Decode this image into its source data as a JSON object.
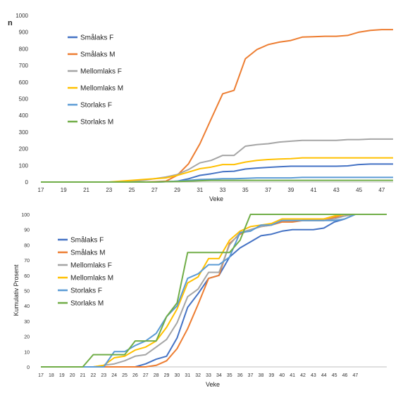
{
  "chart_data": [
    {
      "type": "line",
      "title": "",
      "ylabel": "n",
      "xlabel": "Veke",
      "ylim": [
        0,
        1000
      ],
      "yticks": [
        0,
        100,
        200,
        300,
        400,
        500,
        600,
        700,
        800,
        900,
        1000
      ],
      "xticks": [
        17,
        19,
        21,
        23,
        25,
        27,
        29,
        31,
        33,
        35,
        37,
        39,
        41,
        43,
        45,
        47
      ],
      "x": [
        17,
        18,
        19,
        20,
        21,
        22,
        23,
        24,
        25,
        26,
        27,
        28,
        29,
        30,
        31,
        32,
        33,
        34,
        35,
        36,
        37,
        38,
        39,
        40,
        41,
        42,
        43,
        44,
        45,
        46,
        47,
        48
      ],
      "grid": false,
      "legend": "left",
      "series": [
        {
          "name": "Smålaks F",
          "color": "#4472C4",
          "values": [
            0,
            0,
            0,
            0,
            0,
            0,
            0,
            0,
            0,
            0,
            0,
            2,
            5,
            20,
            40,
            50,
            62,
            65,
            78,
            84,
            88,
            92,
            95,
            95,
            95,
            95,
            95,
            97,
            105,
            108,
            108,
            108
          ]
        },
        {
          "name": "Smålaks M",
          "color": "#ED7D31",
          "values": [
            0,
            0,
            0,
            0,
            0,
            0,
            0,
            0,
            0,
            0,
            2,
            5,
            40,
            110,
            230,
            380,
            530,
            550,
            740,
            795,
            825,
            840,
            850,
            870,
            872,
            875,
            875,
            880,
            900,
            910,
            915,
            915
          ]
        },
        {
          "name": "Mellomlaks F",
          "color": "#A5A5A5",
          "values": [
            0,
            0,
            0,
            0,
            0,
            0,
            0,
            2,
            5,
            10,
            20,
            30,
            45,
            75,
            115,
            130,
            160,
            160,
            215,
            225,
            230,
            240,
            245,
            250,
            250,
            250,
            250,
            255,
            255,
            258,
            258,
            258
          ]
        },
        {
          "name": "Mellomlaks M",
          "color": "#FFC000",
          "values": [
            0,
            0,
            0,
            0,
            0,
            0,
            0,
            5,
            10,
            15,
            20,
            25,
            40,
            60,
            80,
            90,
            105,
            105,
            120,
            130,
            135,
            138,
            140,
            145,
            145,
            145,
            145,
            145,
            145,
            145,
            145,
            145
          ]
        },
        {
          "name": "Storlaks F",
          "color": "#5B9BD5",
          "values": [
            0,
            0,
            0,
            0,
            0,
            0,
            0,
            0,
            0,
            0,
            0,
            2,
            5,
            10,
            15,
            17,
            20,
            20,
            22,
            25,
            25,
            25,
            25,
            28,
            28,
            28,
            28,
            28,
            28,
            28,
            28,
            28
          ]
        },
        {
          "name": "Storlaks M",
          "color": "#70AD47",
          "values": [
            0,
            0,
            0,
            0,
            0,
            0,
            0,
            0,
            0,
            0,
            0,
            2,
            3,
            5,
            8,
            10,
            10,
            10,
            10,
            10,
            10,
            10,
            10,
            10,
            10,
            10,
            10,
            10,
            10,
            10,
            10,
            10
          ]
        }
      ]
    },
    {
      "type": "line",
      "title": "",
      "ylabel": "Kumulativ Prosent",
      "xlabel": "Veke",
      "ylim": [
        0,
        100
      ],
      "yticks": [
        0,
        10,
        20,
        30,
        40,
        50,
        60,
        70,
        80,
        90,
        100
      ],
      "xticks": [
        17,
        18,
        19,
        20,
        21,
        22,
        23,
        24,
        25,
        26,
        27,
        28,
        29,
        30,
        31,
        32,
        33,
        34,
        35,
        36,
        37,
        38,
        39,
        40,
        41,
        42,
        43,
        44,
        45,
        46,
        47
      ],
      "x": [
        17,
        18,
        19,
        20,
        21,
        22,
        23,
        24,
        25,
        26,
        27,
        28,
        29,
        30,
        31,
        32,
        33,
        34,
        35,
        36,
        37,
        38,
        39,
        40,
        41,
        42,
        43,
        44,
        45,
        46,
        47,
        48,
        49,
        50
      ],
      "grid": false,
      "legend": "left",
      "series": [
        {
          "name": "Smålaks F",
          "color": "#4472C4",
          "values": [
            0,
            0,
            0,
            0,
            0,
            0,
            0,
            0,
            0,
            0,
            2,
            5,
            7,
            19,
            39,
            48,
            58,
            60,
            72,
            78,
            82,
            86,
            87,
            89,
            90,
            90,
            90,
            91,
            95,
            97,
            100,
            100,
            100,
            100
          ]
        },
        {
          "name": "Smålaks M",
          "color": "#ED7D31",
          "values": [
            0,
            0,
            0,
            0,
            0,
            0,
            0,
            0,
            0,
            0,
            0,
            1,
            4,
            12,
            25,
            41,
            58,
            60,
            81,
            87,
            90,
            92,
            93,
            95,
            95,
            96,
            96,
            96,
            98,
            99,
            100,
            100,
            100,
            100
          ]
        },
        {
          "name": "Mellomlaks F",
          "color": "#A5A5A5",
          "values": [
            0,
            0,
            0,
            0,
            0,
            0,
            1,
            2,
            4,
            7,
            8,
            13,
            18,
            29,
            46,
            51,
            62,
            62,
            80,
            88,
            90,
            92,
            93,
            96,
            96,
            96,
            96,
            96,
            97,
            99,
            100,
            100,
            100,
            100
          ]
        },
        {
          "name": "Mellomlaks M",
          "color": "#FFC000",
          "values": [
            0,
            0,
            0,
            0,
            0,
            0,
            1,
            6,
            7,
            11,
            13,
            17,
            26,
            38,
            55,
            59,
            71,
            71,
            83,
            89,
            92,
            93,
            94,
            97,
            97,
            97,
            97,
            97,
            99,
            100,
            100,
            100,
            100,
            100
          ]
        },
        {
          "name": "Storlaks F",
          "color": "#5B9BD5",
          "values": [
            0,
            0,
            0,
            0,
            0,
            0,
            0,
            10,
            10,
            14,
            17,
            22,
            33,
            40,
            58,
            61,
            67,
            67,
            72,
            88,
            89,
            93,
            93,
            96,
            96,
            96,
            96,
            96,
            96,
            97,
            100,
            100,
            100,
            100
          ]
        },
        {
          "name": "Storlaks M",
          "color": "#70AD47",
          "values": [
            0,
            0,
            0,
            0,
            0,
            8,
            8,
            8,
            8,
            17,
            17,
            17,
            33,
            42,
            75,
            75,
            75,
            75,
            75,
            83,
            100,
            100,
            100,
            100,
            100,
            100,
            100,
            100,
            100,
            100,
            100,
            100,
            100,
            100
          ]
        }
      ]
    }
  ]
}
